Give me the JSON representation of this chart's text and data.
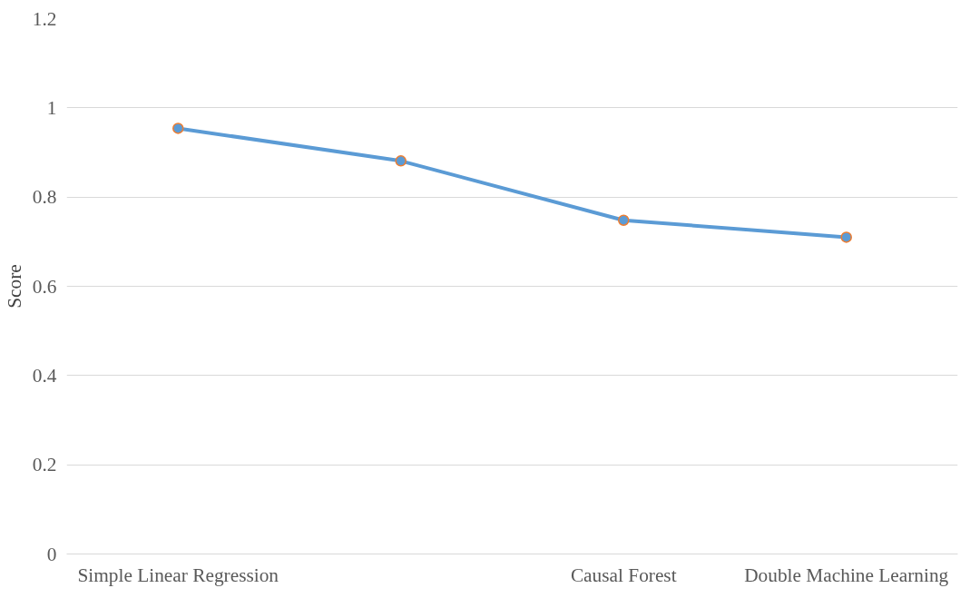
{
  "chart_data": {
    "type": "line",
    "ylabel": "Score",
    "categories": [
      "Simple Linear Regression",
      null,
      "Causal Forest",
      "Double Machine Learning"
    ],
    "series": [
      {
        "color": "#5b9bd5",
        "values": [
          0.954,
          0.881,
          0.748,
          0.71
        ]
      }
    ],
    "ylim": [
      0,
      1.2
    ],
    "yticks": [
      0,
      0.2,
      0.4,
      0.6,
      0.8,
      1,
      1.2
    ],
    "grid": "y",
    "marker": "circle",
    "line_style": "solid"
  }
}
